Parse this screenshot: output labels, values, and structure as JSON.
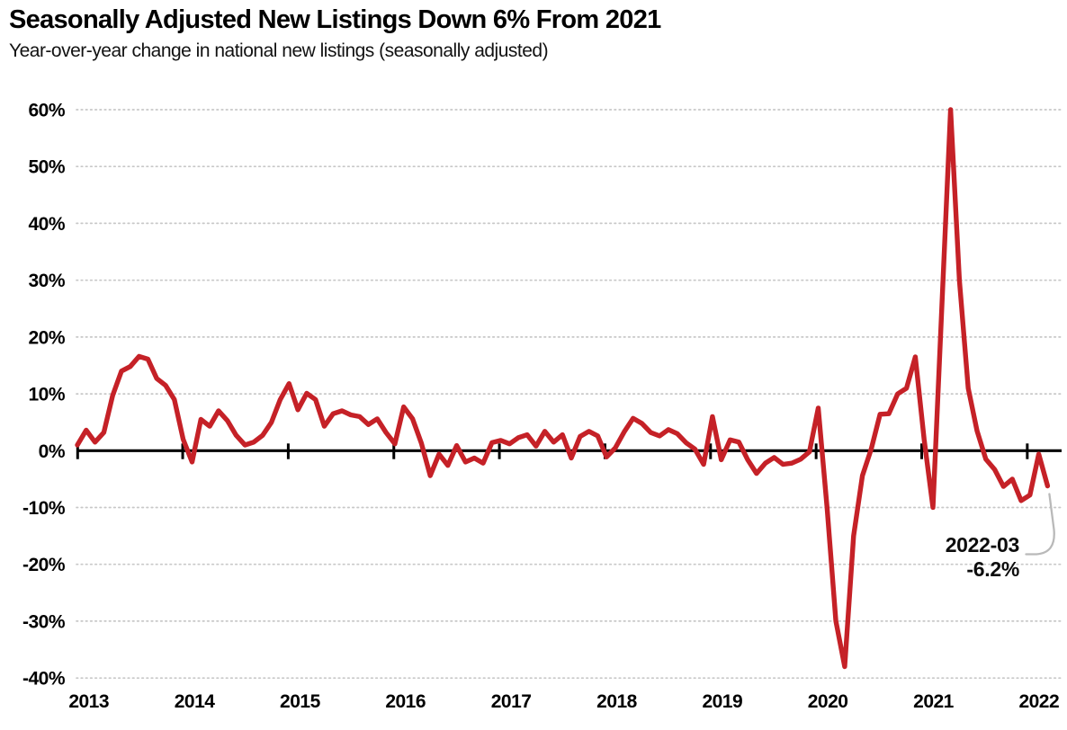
{
  "header": {
    "title": "Seasonally Adjusted New Listings Down 6% From 2021",
    "subtitle": "Year-over-year change in national new listings (seasonally adjusted)"
  },
  "annotation": {
    "date": "2022-03",
    "value": "-6.2%"
  },
  "colors": {
    "line": "#c52127",
    "axis": "#000000",
    "grid": "#c8c8c8",
    "callout": "#b9b9b9",
    "text": "#000000"
  },
  "chart_data": {
    "type": "line",
    "title": "Seasonally Adjusted New Listings Down 6% From 2021",
    "subtitle": "Year-over-year change in national new listings (seasonally adjusted)",
    "unit": "%",
    "ylim": [
      -40,
      60
    ],
    "grid": "horizontal-dotted",
    "legend": "none",
    "y_ticks": [
      60,
      50,
      40,
      30,
      20,
      10,
      0,
      -10,
      -20,
      -30,
      -40
    ],
    "y_tick_labels": [
      "60%",
      "50%",
      "40%",
      "30%",
      "20%",
      "10%",
      "0%",
      "-10%",
      "-20%",
      "-30%",
      "-40%"
    ],
    "x_ticks": [
      "2013",
      "2014",
      "2015",
      "2016",
      "2017",
      "2018",
      "2019",
      "2020",
      "2021",
      "2022"
    ],
    "annotation_point": {
      "x": "2022-03",
      "y": -6.2
    },
    "x": [
      "2013-01",
      "2013-02",
      "2013-03",
      "2013-04",
      "2013-05",
      "2013-06",
      "2013-07",
      "2013-08",
      "2013-09",
      "2013-10",
      "2013-11",
      "2013-12",
      "2014-01",
      "2014-02",
      "2014-03",
      "2014-04",
      "2014-05",
      "2014-06",
      "2014-07",
      "2014-08",
      "2014-09",
      "2014-10",
      "2014-11",
      "2014-12",
      "2015-01",
      "2015-02",
      "2015-03",
      "2015-04",
      "2015-05",
      "2015-06",
      "2015-07",
      "2015-08",
      "2015-09",
      "2015-10",
      "2015-11",
      "2015-12",
      "2016-01",
      "2016-02",
      "2016-03",
      "2016-04",
      "2016-05",
      "2016-06",
      "2016-07",
      "2016-08",
      "2016-09",
      "2016-10",
      "2016-11",
      "2016-12",
      "2017-01",
      "2017-02",
      "2017-03",
      "2017-04",
      "2017-05",
      "2017-06",
      "2017-07",
      "2017-08",
      "2017-09",
      "2017-10",
      "2017-11",
      "2017-12",
      "2018-01",
      "2018-02",
      "2018-03",
      "2018-04",
      "2018-05",
      "2018-06",
      "2018-07",
      "2018-08",
      "2018-09",
      "2018-10",
      "2018-11",
      "2018-12",
      "2019-01",
      "2019-02",
      "2019-03",
      "2019-04",
      "2019-05",
      "2019-06",
      "2019-07",
      "2019-08",
      "2019-09",
      "2019-10",
      "2019-11",
      "2019-12",
      "2020-01",
      "2020-02",
      "2020-03",
      "2020-04",
      "2020-05",
      "2020-06",
      "2020-07",
      "2020-08",
      "2020-09",
      "2020-10",
      "2020-11",
      "2020-12",
      "2021-01",
      "2021-02",
      "2021-03",
      "2021-04",
      "2021-05",
      "2021-06",
      "2021-07",
      "2021-08",
      "2021-09",
      "2021-10",
      "2021-11",
      "2021-12",
      "2022-01",
      "2022-02",
      "2022-03"
    ],
    "y": [
      1.0,
      3.6,
      1.5,
      3.2,
      9.7,
      14.0,
      14.8,
      16.6,
      16.1,
      12.7,
      11.5,
      9.0,
      2.0,
      -2.0,
      5.5,
      4.3,
      7.0,
      5.3,
      2.7,
      1.0,
      1.5,
      2.7,
      5.0,
      9.0,
      11.8,
      7.2,
      10.1,
      9.0,
      4.3,
      6.5,
      7.0,
      6.3,
      6.0,
      4.6,
      5.6,
      3.2,
      1.2,
      7.7,
      5.6,
      1.3,
      -4.4,
      -0.6,
      -2.6,
      0.9,
      -2.0,
      -1.3,
      -2.2,
      1.4,
      1.8,
      1.2,
      2.3,
      2.8,
      0.8,
      3.4,
      1.5,
      2.8,
      -1.3,
      2.5,
      3.4,
      2.6,
      -1.1,
      0.5,
      3.3,
      5.7,
      4.8,
      3.2,
      2.6,
      3.7,
      3.0,
      1.4,
      0.3,
      -2.4,
      6.0,
      -1.6,
      1.9,
      1.5,
      -1.6,
      -4.0,
      -2.2,
      -1.2,
      -2.4,
      -2.2,
      -1.5,
      -0.2,
      7.5,
      -10.0,
      -30.0,
      -38.0,
      -15.0,
      -4.4,
      0.3,
      6.4,
      6.5,
      10.0,
      11.0,
      16.5,
      2.0,
      -10.0,
      25.0,
      60.0,
      30.0,
      11.0,
      3.5,
      -1.5,
      -3.3,
      -6.3,
      -5.0,
      -8.8,
      -7.8,
      -0.6,
      -6.2
    ]
  }
}
